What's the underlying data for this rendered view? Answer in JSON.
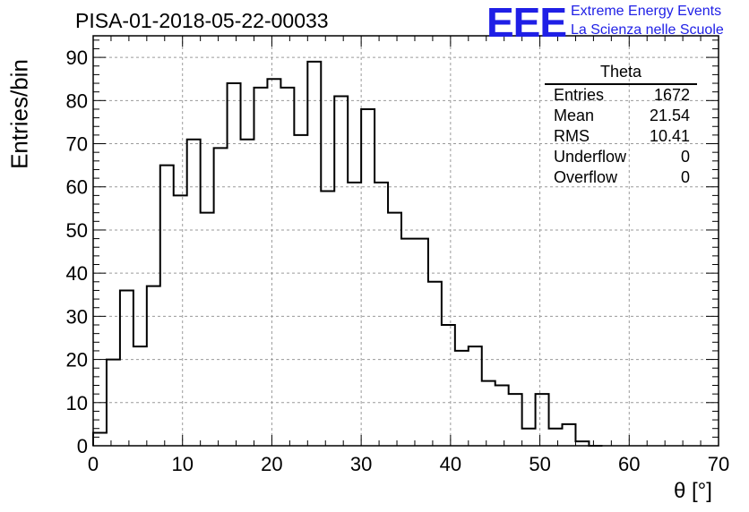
{
  "title": "PISA-01-2018-05-22-00033",
  "logo": {
    "mark": "EEE",
    "line1": "Extreme Energy Events",
    "line2": "La Scienza nelle Scuole",
    "color": "#1f1fe6"
  },
  "stats_box": {
    "title": "Theta",
    "rows": [
      {
        "label": "Entries",
        "value": "1672"
      },
      {
        "label": "Mean",
        "value": "21.54"
      },
      {
        "label": "RMS",
        "value": "10.41"
      },
      {
        "label": "Underflow",
        "value": "0"
      },
      {
        "label": "Overflow",
        "value": "0"
      }
    ]
  },
  "chart_data": {
    "type": "bar",
    "title": "PISA-01-2018-05-22-00033",
    "xlabel": "θ [°]",
    "ylabel": "Entries/bin",
    "xlim": [
      0,
      70
    ],
    "ylim": [
      0,
      95
    ],
    "xticks": [
      0,
      10,
      20,
      30,
      40,
      50,
      60,
      70
    ],
    "yticks": [
      0,
      10,
      20,
      30,
      40,
      50,
      60,
      70,
      80,
      90
    ],
    "grid": true,
    "bin_width": 1.5,
    "bin_edges_start": 0,
    "values": [
      3,
      20,
      36,
      23,
      37,
      65,
      58,
      71,
      54,
      69,
      84,
      71,
      83,
      85,
      83,
      72,
      89,
      59,
      81,
      61,
      78,
      61,
      54,
      48,
      48,
      38,
      28,
      22,
      23,
      15,
      14,
      12,
      4,
      12,
      4,
      5,
      1,
      0
    ]
  }
}
